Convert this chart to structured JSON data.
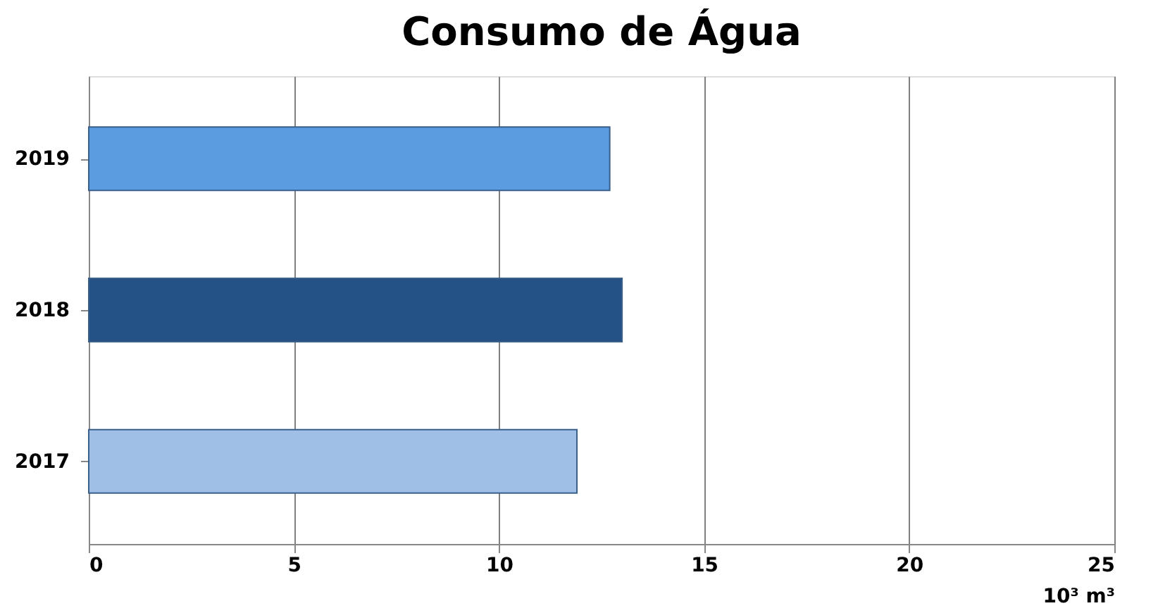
{
  "chart_data": {
    "type": "bar",
    "orientation": "horizontal",
    "title": "Consumo de Água",
    "xlabel": "10³ m³",
    "categories": [
      "2019",
      "2018",
      "2017"
    ],
    "values": [
      12.7,
      13.0,
      11.9
    ],
    "colors": [
      "#5b9be0",
      "#245287",
      "#a0bfe6"
    ],
    "xlim": [
      0,
      25
    ],
    "xticks": [
      0,
      5,
      10,
      15,
      20,
      25
    ],
    "grid": "x"
  }
}
